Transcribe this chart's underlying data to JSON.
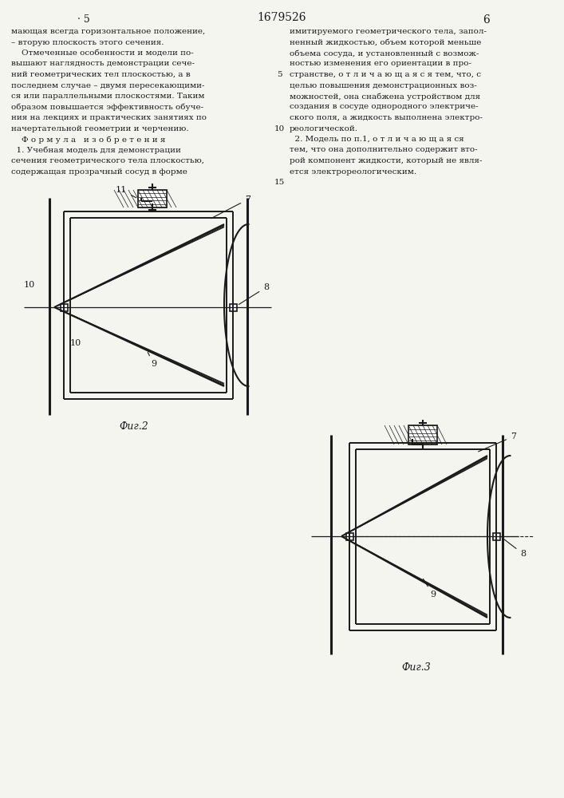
{
  "bg_color": "#f5f5f0",
  "line_color": "#1a1a1a",
  "text_color": "#1a1a1a",
  "title": "1679526",
  "page_l": "· 5",
  "page_r": "6",
  "fig2_caption": "Фиг.2",
  "fig3_caption": "Фиг.3",
  "left_text": [
    "мающая всегда горизонтальное положение,",
    "– вторую плоскость этого сечения.",
    "    Отмеченные особенности и модели по-",
    "вышают наглядность демонстрации сече-",
    "ний геометрических тел плоскостью, а в",
    "последнем случае – двумя пересекающими-",
    "ся или параллельными плоскостями. Таким",
    "образом повышается эффективность обуче-",
    "ния на лекциях и практических занятиях по",
    "начертательной геометрии и черчению.",
    "    Ф о р м у л а   и з о б р е т е н и я",
    "  1. Учебная модель для демонстрации",
    "сечения геометрического тела плоскостью,",
    "содержащая прозрачный сосуд в форме"
  ],
  "right_text": [
    "имитируемого геометрического тела, запол-",
    "ненный жидкостью, объем которой меньше",
    "объема сосуда, и установленный с возмож-",
    "ностью изменения его ориентации в про-",
    "странстве, о т л и ч а ю щ а я с я тем, что, с",
    "целью повышения демонстрационных воз-",
    "можностей, она снабжена устройством для",
    "создания в сосуде однородного электриче-",
    "ского поля, а жидкость выполнена электро-",
    "реологической.",
    "  2. Модель по п.1, о т л и ч а ю щ а я ся",
    "тем, что она дополнительно содержит вто-",
    "рой компонент жидкости, который не явля-",
    "ется электрореологическим."
  ]
}
